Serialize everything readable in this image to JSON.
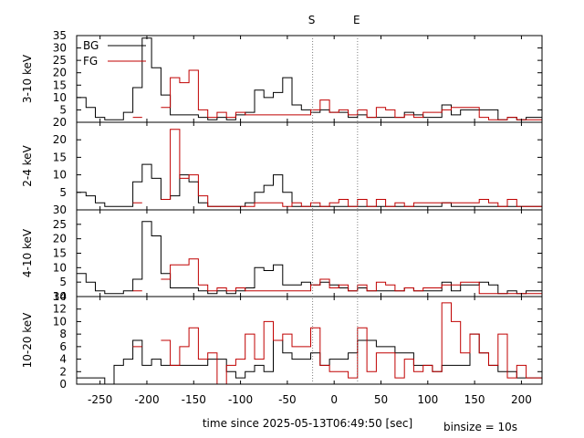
{
  "chart_data": {
    "type": "step",
    "title": "",
    "xlabel": "time since 2025-05-13T06:49:50 [sec]",
    "binsize_label": "binsize = 10s",
    "xlim": [
      -275,
      222
    ],
    "x_ticks": [
      -250,
      -200,
      -150,
      -100,
      -50,
      0,
      50,
      100,
      150,
      200
    ],
    "markers": [
      {
        "label": "S",
        "x": -23
      },
      {
        "label": "E",
        "x": 25
      }
    ],
    "legend": {
      "placement": "top-left",
      "entries": [
        {
          "label": "BG",
          "color": "#000000"
        },
        {
          "label": "FG",
          "color": "#c00000"
        }
      ]
    },
    "x_edges": [
      -275,
      -265,
      -255,
      -245,
      -235,
      -225,
      -215,
      -205,
      -195,
      -185,
      -175,
      -165,
      -155,
      -145,
      -135,
      -125,
      -115,
      -105,
      -95,
      -85,
      -75,
      -65,
      -55,
      -45,
      -35,
      -25,
      -15,
      -5,
      5,
      15,
      25,
      35,
      45,
      55,
      65,
      75,
      85,
      95,
      105,
      115,
      125,
      135,
      145,
      155,
      165,
      175,
      185,
      195,
      205,
      215,
      222
    ],
    "panels": [
      {
        "ylabel": "3-10 keV",
        "ylim": [
          0,
          35
        ],
        "y_ticks": [
          5,
          10,
          15,
          20,
          25,
          30,
          35
        ],
        "y_tick_labels": [
          "5",
          "10",
          "15",
          "20",
          "25",
          "30",
          "35"
        ],
        "bottom_tick_label": "20",
        "series": [
          {
            "name": "BG",
            "color": "#000000",
            "values": [
              10,
              6,
              2,
              1,
              1,
              4,
              14,
              34,
              22,
              11,
              3,
              3,
              3,
              2,
              1,
              2,
              1,
              3,
              4,
              13,
              10,
              12,
              18,
              7,
              5,
              4,
              5,
              4,
              4,
              2,
              3,
              2,
              2,
              2,
              2,
              4,
              3,
              2,
              2,
              7,
              3,
              5,
              5,
              5,
              5,
              1,
              2,
              1,
              2,
              2,
              2
            ]
          },
          {
            "name": "FG",
            "color": "#c00000",
            "values": [
              null,
              null,
              null,
              null,
              null,
              null,
              2,
              null,
              null,
              6,
              18,
              16,
              21,
              5,
              2,
              4,
              2,
              4,
              3,
              3,
              3,
              3,
              3,
              3,
              3,
              5,
              9,
              4,
              5,
              3,
              5,
              2,
              6,
              5,
              2,
              3,
              2,
              4,
              4,
              5,
              6,
              6,
              6,
              2,
              1,
              1,
              2,
              1,
              1,
              1,
              1
            ]
          }
        ]
      },
      {
        "ylabel": "2-4 keV",
        "ylim": [
          0,
          25
        ],
        "y_ticks": [
          5,
          10,
          15,
          20
        ],
        "y_tick_labels": [
          "5",
          "10",
          "15",
          "20"
        ],
        "bottom_tick_label": "30",
        "series": [
          {
            "name": "BG",
            "color": "#000000",
            "values": [
              5,
              4,
              2,
              1,
              1,
              1,
              8,
              13,
              9,
              3,
              4,
              10,
              8,
              2,
              1,
              1,
              1,
              1,
              2,
              5,
              7,
              10,
              5,
              1,
              1,
              1,
              1,
              1,
              1,
              1,
              1,
              1,
              1,
              1,
              1,
              1,
              1,
              1,
              1,
              2,
              1,
              1,
              1,
              1,
              1,
              1,
              1,
              1,
              1,
              1,
              1
            ]
          },
          {
            "name": "FG",
            "color": "#c00000",
            "values": [
              null,
              null,
              null,
              null,
              null,
              null,
              2,
              null,
              null,
              3,
              23,
              9,
              10,
              4,
              1,
              1,
              1,
              1,
              1,
              2,
              2,
              2,
              1,
              2,
              1,
              2,
              1,
              2,
              3,
              1,
              3,
              1,
              3,
              1,
              2,
              1,
              2,
              2,
              2,
              2,
              2,
              2,
              2,
              3,
              2,
              1,
              3,
              1,
              1,
              1,
              1
            ]
          }
        ]
      },
      {
        "ylabel": "4-10 keV",
        "ylim": [
          0,
          30
        ],
        "y_ticks": [
          5,
          10,
          15,
          20,
          25
        ],
        "y_tick_labels": [
          "5",
          "10",
          "15",
          "20",
          "25"
        ],
        "bottom_tick_label": "30",
        "series": [
          {
            "name": "BG",
            "color": "#000000",
            "values": [
              8,
              5,
              2,
              1,
              1,
              2,
              6,
              26,
              21,
              8,
              3,
              3,
              3,
              2,
              1,
              2,
              1,
              2,
              3,
              10,
              9,
              11,
              4,
              4,
              5,
              4,
              5,
              4,
              3,
              2,
              3,
              2,
              2,
              2,
              2,
              3,
              2,
              2,
              2,
              5,
              2,
              4,
              4,
              5,
              4,
              1,
              2,
              1,
              2,
              2,
              2
            ]
          },
          {
            "name": "FG",
            "color": "#c00000",
            "values": [
              null,
              null,
              null,
              null,
              null,
              null,
              2,
              null,
              null,
              6,
              11,
              11,
              13,
              4,
              2,
              3,
              2,
              3,
              2,
              2,
              2,
              2,
              2,
              2,
              2,
              4,
              6,
              3,
              4,
              2,
              4,
              2,
              5,
              4,
              2,
              3,
              2,
              3,
              3,
              4,
              4,
              5,
              5,
              1,
              1,
              1,
              1,
              1,
              1,
              1,
              1
            ]
          }
        ]
      },
      {
        "ylabel": "10-20 keV",
        "ylim": [
          0,
          14
        ],
        "y_ticks": [
          0,
          2,
          4,
          6,
          8,
          10,
          12
        ],
        "y_tick_labels": [
          "0",
          "2",
          "4",
          "6",
          "8",
          "10",
          "12"
        ],
        "top_tick_label": "14",
        "series": [
          {
            "name": "BG",
            "color": "#000000",
            "values": [
              1,
              1,
              1,
              0,
              3,
              4,
              7,
              3,
              4,
              3,
              3,
              3,
              3,
              3,
              4,
              4,
              2,
              1,
              2,
              3,
              2,
              7,
              5,
              4,
              4,
              5,
              3,
              4,
              4,
              5,
              7,
              7,
              6,
              6,
              5,
              5,
              3,
              3,
              2,
              3,
              3,
              3,
              8,
              5,
              3,
              2,
              2,
              1,
              1,
              1,
              1
            ]
          },
          {
            "name": "FG",
            "color": "#c00000",
            "values": [
              null,
              null,
              null,
              null,
              null,
              null,
              6,
              null,
              null,
              7,
              3,
              6,
              9,
              4,
              5,
              0,
              3,
              4,
              8,
              4,
              10,
              7,
              8,
              6,
              6,
              9,
              3,
              2,
              2,
              1,
              9,
              2,
              5,
              5,
              1,
              4,
              2,
              3,
              2,
              13,
              10,
              5,
              8,
              5,
              3,
              8,
              1,
              3,
              1,
              1,
              1
            ]
          }
        ]
      }
    ]
  }
}
